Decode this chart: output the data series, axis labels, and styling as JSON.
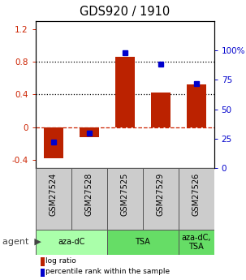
{
  "title": "GDS920 / 1910",
  "samples": [
    "GSM27524",
    "GSM27528",
    "GSM27525",
    "GSM27529",
    "GSM27526"
  ],
  "log_ratios": [
    -0.38,
    -0.12,
    0.86,
    0.42,
    0.52
  ],
  "percentile_ranks": [
    22,
    30,
    98,
    88,
    72
  ],
  "bar_color": "#bb2200",
  "dot_color": "#0000cc",
  "ylim_left": [
    -0.5,
    1.3
  ],
  "ylim_right": [
    0,
    125
  ],
  "yticks_left": [
    -0.4,
    0.0,
    0.4,
    0.8,
    1.2
  ],
  "ytick_labels_left": [
    "-0.4",
    "0",
    "0.4",
    "0.8",
    "1.2"
  ],
  "yticks_right_pct": [
    0,
    25,
    50,
    75,
    100
  ],
  "ytick_labels_right": [
    "0",
    "25",
    "50",
    "75",
    "100%"
  ],
  "hlines": [
    0.4,
    0.8
  ],
  "groups": [
    {
      "label": "aza-dC",
      "color": "#aaffaa",
      "start": 0,
      "end": 2
    },
    {
      "label": "TSA",
      "color": "#66dd66",
      "start": 2,
      "end": 4
    },
    {
      "label": "aza-dC,\nTSA",
      "color": "#66dd66",
      "start": 4,
      "end": 5
    }
  ],
  "legend_items": [
    {
      "color": "#bb2200",
      "label": "log ratio"
    },
    {
      "color": "#0000cc",
      "label": "percentile rank within the sample"
    }
  ],
  "bg_color": "#ffffff",
  "zero_line_color": "#cc2200",
  "bar_width": 0.55,
  "tick_fontsize": 7.5,
  "title_fontsize": 10.5,
  "label_fontsize": 7,
  "agent_fontsize": 8
}
